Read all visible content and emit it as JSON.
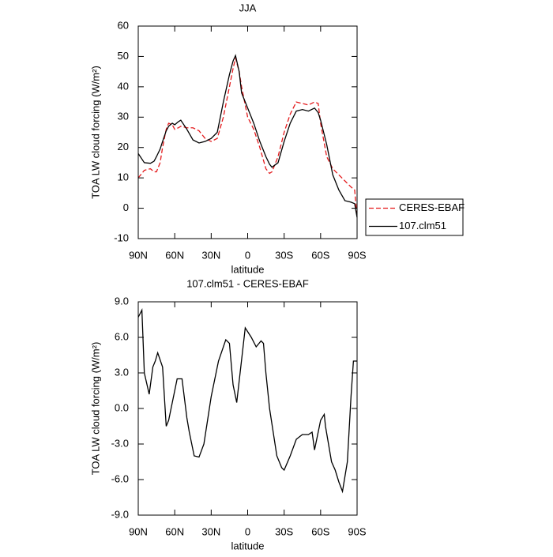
{
  "chart_data": [
    {
      "type": "line",
      "title": "JJA",
      "xlabel": "latitude",
      "ylabel": "TOA LW cloud forcing (W/m²)",
      "x": [
        90,
        85,
        80,
        77,
        75,
        72,
        70,
        67,
        65,
        62,
        60,
        57,
        55,
        50,
        45,
        40,
        35,
        30,
        25,
        20,
        15,
        12,
        10,
        7,
        5,
        0,
        -5,
        -10,
        -15,
        -18,
        -20,
        -25,
        -30,
        -35,
        -40,
        -45,
        -50,
        -55,
        -58,
        -60,
        -65,
        -70,
        -75,
        -80,
        -85,
        -88,
        -90
      ],
      "series": [
        {
          "name": "CERES-EBAF",
          "color": "#e41a1c",
          "dashed": true,
          "values": [
            10,
            12.5,
            13,
            12,
            12,
            15,
            20,
            26,
            28,
            27.5,
            26,
            26.5,
            27,
            26.5,
            26.5,
            25.5,
            23,
            22,
            23,
            30,
            40,
            46,
            49.5,
            45,
            40,
            30,
            26,
            20,
            13,
            11.5,
            12,
            17,
            25,
            31,
            35,
            34.5,
            34,
            35,
            34.5,
            28,
            17,
            13,
            11,
            9,
            7,
            6,
            -3
          ]
        },
        {
          "name": "107.clm51",
          "color": "#000000",
          "dashed": false,
          "values": [
            18,
            15,
            14.8,
            15.5,
            17,
            19.5,
            22,
            25.5,
            27,
            28,
            27.5,
            28.5,
            29,
            26,
            22.5,
            21.5,
            22,
            23,
            25,
            35,
            44,
            48.5,
            50.3,
            45,
            38,
            33,
            28,
            22,
            17,
            14.5,
            13.5,
            15,
            22,
            28,
            32,
            32.5,
            32,
            33,
            31.5,
            29,
            21,
            11,
            6,
            2.5,
            2,
            1.5,
            -3
          ]
        }
      ],
      "xlim": [
        90,
        -90
      ],
      "xticks": [
        {
          "value": 90,
          "label": "90N"
        },
        {
          "value": 60,
          "label": "60N"
        },
        {
          "value": 30,
          "label": "30N"
        },
        0,
        {
          "value": -30,
          "label": "30S"
        },
        {
          "value": -60,
          "label": "60S"
        },
        {
          "value": -90,
          "label": "90S"
        }
      ],
      "ylim": [
        -10,
        60
      ],
      "yticks": [
        -10,
        0,
        10,
        20,
        30,
        40,
        50,
        60
      ],
      "legend": "right"
    },
    {
      "type": "line",
      "title": "107.clm51 - CERES-EBAF",
      "xlabel": "latitude",
      "ylabel": "TOA LW cloud forcing (W/m²)",
      "x": [
        90,
        87,
        85,
        81,
        78,
        76,
        74,
        70,
        67,
        65,
        63,
        58,
        54,
        50,
        48,
        44,
        40,
        36,
        33,
        30,
        24,
        18,
        15,
        12,
        9,
        2,
        -3,
        -7,
        -11,
        -13,
        -15,
        -18,
        -24,
        -28,
        -30,
        -35,
        -40,
        -45,
        -50,
        -53,
        -55,
        -60,
        -63,
        -64,
        -69,
        -72,
        -75,
        -78,
        -82,
        -85,
        -87,
        -90
      ],
      "series": [
        {
          "color": "#000000",
          "dashed": false,
          "values": [
            7.7,
            8.3,
            3,
            1.2,
            3.5,
            4,
            4.7,
            3.5,
            -1.5,
            -1,
            0,
            2.5,
            2.5,
            -0.8,
            -2,
            -4,
            -4.1,
            -3,
            -1,
            1,
            4,
            5.8,
            5.5,
            2,
            0.5,
            6.8,
            6,
            5.2,
            5.7,
            5.5,
            3,
            0,
            -4,
            -5,
            -5.2,
            -4,
            -2.6,
            -2.2,
            -2.2,
            -2,
            -3.5,
            -1,
            -0.5,
            -1.5,
            -4.5,
            -5.2,
            -6.2,
            -7,
            -4.5,
            1,
            4,
            4
          ]
        }
      ],
      "xlim": [
        90,
        -90
      ],
      "xticks": [
        {
          "value": 90,
          "label": "90N"
        },
        {
          "value": 60,
          "label": "60N"
        },
        {
          "value": 30,
          "label": "30N"
        },
        0,
        {
          "value": -30,
          "label": "30S"
        },
        {
          "value": -60,
          "label": "60S"
        },
        {
          "value": -90,
          "label": "90S"
        }
      ],
      "ylim": [
        -9,
        9
      ],
      "yticks": [
        {
          "value": -9,
          "label": "-9.0"
        },
        {
          "value": -6,
          "label": "-6.0"
        },
        {
          "value": -3,
          "label": "-3.0"
        },
        {
          "value": 0,
          "label": "0.0"
        },
        {
          "value": 3,
          "label": "3.0"
        },
        {
          "value": 6,
          "label": "6.0"
        },
        {
          "value": 9,
          "label": "9.0"
        }
      ]
    }
  ]
}
